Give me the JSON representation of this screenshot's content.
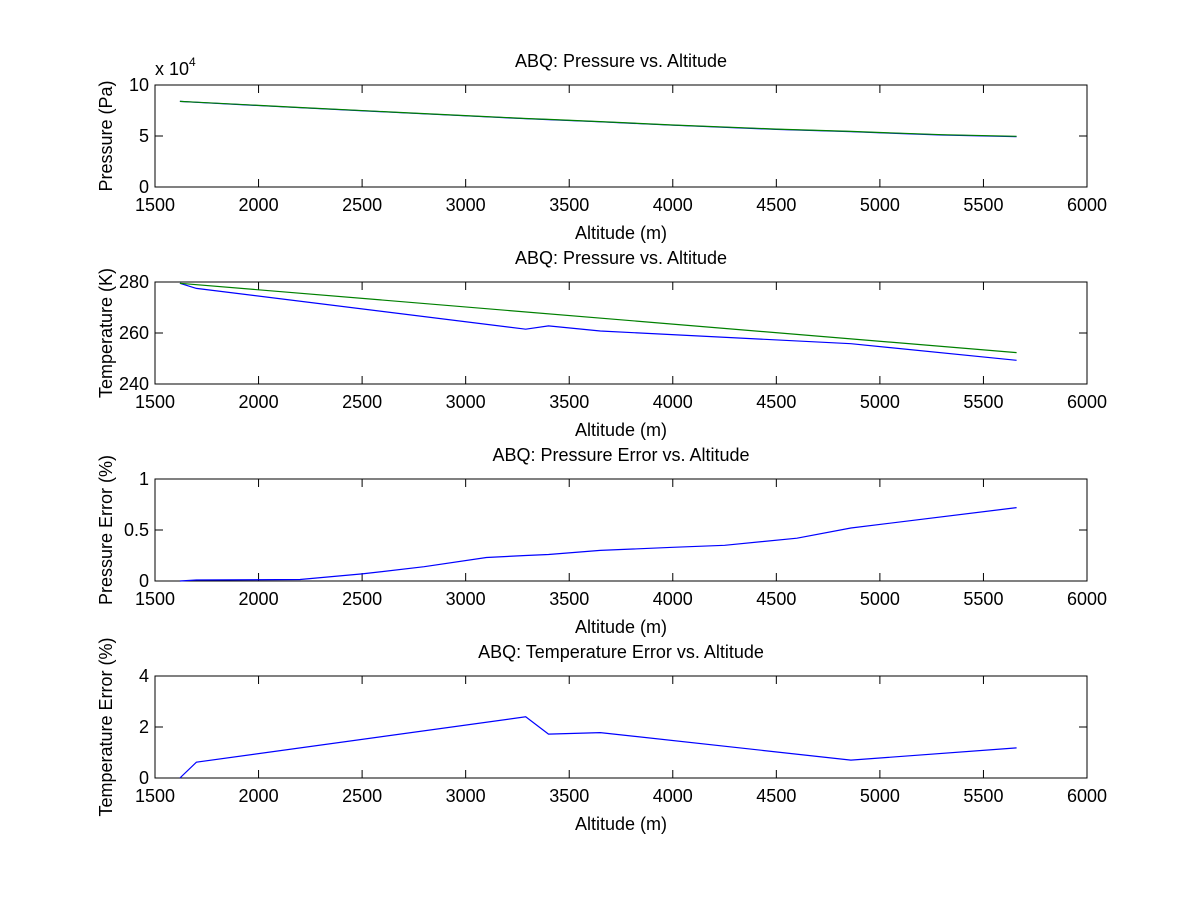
{
  "chart_data": [
    {
      "type": "line",
      "title": "ABQ: Pressure vs. Altitude",
      "xlabel": "Altitude (m)",
      "ylabel": "Pressure (Pa)",
      "xlim": [
        1500,
        6000
      ],
      "ylim": [
        0,
        10
      ],
      "x_ticks": [
        "1500",
        "2000",
        "2500",
        "3000",
        "3500",
        "4000",
        "4500",
        "5000",
        "5500",
        "6000"
      ],
      "y_ticks": [
        "0",
        "5",
        "10"
      ],
      "y_exponent": {
        "base": "x 10",
        "power": "4"
      },
      "grid": false,
      "series": [
        {
          "color": "#0000ff",
          "x": [
            1620,
            1700,
            2200,
            2700,
            3100,
            3290,
            3400,
            3650,
            4000,
            4500,
            4860,
            5000,
            5300,
            5660
          ],
          "y": [
            8.39,
            8.3,
            7.77,
            7.27,
            6.88,
            6.7,
            6.61,
            6.39,
            6.06,
            5.65,
            5.43,
            5.31,
            5.1,
            4.93
          ]
        },
        {
          "color": "#008000",
          "x": [
            1620,
            1700,
            2200,
            2700,
            3100,
            3290,
            3400,
            3650,
            4000,
            4500,
            4860,
            5000,
            5300,
            5660
          ],
          "y": [
            8.39,
            8.31,
            7.79,
            7.29,
            6.9,
            6.72,
            6.63,
            6.41,
            6.08,
            5.68,
            5.45,
            5.34,
            5.13,
            4.97
          ]
        }
      ]
    },
    {
      "type": "line",
      "title": "ABQ: Pressure vs. Altitude",
      "xlabel": "Altitude (m)",
      "ylabel": "Temperature (K)",
      "xlim": [
        1500,
        6000
      ],
      "ylim": [
        240,
        280
      ],
      "x_ticks": [
        "1500",
        "2000",
        "2500",
        "3000",
        "3500",
        "4000",
        "4500",
        "5000",
        "5500",
        "6000"
      ],
      "y_ticks": [
        "240",
        "260",
        "280"
      ],
      "grid": false,
      "series": [
        {
          "color": "#0000ff",
          "x": [
            1620,
            1700,
            3290,
            3400,
            3650,
            4860,
            5660
          ],
          "y": [
            279.5,
            277.5,
            261.5,
            262.8,
            260.8,
            255.8,
            249.3
          ]
        },
        {
          "color": "#008000",
          "x": [
            1620,
            5660
          ],
          "y": [
            279.5,
            252.3
          ]
        }
      ]
    },
    {
      "type": "line",
      "title": "ABQ: Pressure Error vs. Altitude",
      "xlabel": "Altitude (m)",
      "ylabel": "Pressure Error (%)",
      "xlim": [
        1500,
        6000
      ],
      "ylim": [
        0,
        1
      ],
      "x_ticks": [
        "1500",
        "2000",
        "2500",
        "3000",
        "3500",
        "4000",
        "4500",
        "5000",
        "5500",
        "6000"
      ],
      "y_ticks": [
        "0",
        "0.5",
        "1"
      ],
      "grid": false,
      "series": [
        {
          "color": "#0000ff",
          "x": [
            1620,
            1700,
            2200,
            2500,
            2800,
            3100,
            3290,
            3400,
            3650,
            4000,
            4250,
            4600,
            4860,
            5660
          ],
          "y": [
            0.0,
            0.01,
            0.015,
            0.07,
            0.14,
            0.23,
            0.25,
            0.26,
            0.3,
            0.33,
            0.35,
            0.42,
            0.52,
            0.72
          ]
        }
      ]
    },
    {
      "type": "line",
      "title": "ABQ: Temperature Error vs. Altitude",
      "xlabel": "Altitude (m)",
      "ylabel": "Temperature Error (%)",
      "xlim": [
        1500,
        6000
      ],
      "ylim": [
        0,
        4
      ],
      "x_ticks": [
        "1500",
        "2000",
        "2500",
        "3000",
        "3500",
        "4000",
        "4500",
        "5000",
        "5500",
        "6000"
      ],
      "y_ticks": [
        "0",
        "2",
        "4"
      ],
      "grid": false,
      "series": [
        {
          "color": "#0000ff",
          "x": [
            1620,
            1700,
            3290,
            3400,
            3650,
            4860,
            5660
          ],
          "y": [
            0.0,
            0.62,
            2.4,
            1.72,
            1.78,
            0.7,
            1.18
          ]
        }
      ]
    }
  ]
}
